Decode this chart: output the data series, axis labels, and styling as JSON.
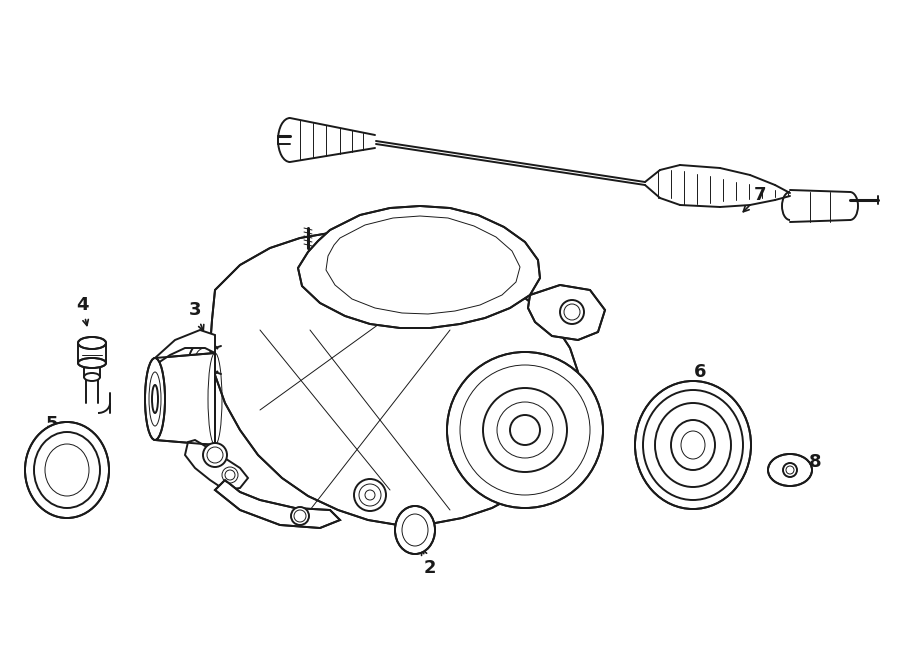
{
  "bg_color": "#ffffff",
  "line_color": "#1a1a1a",
  "fig_width": 9.0,
  "fig_height": 6.61,
  "dpi": 100,
  "lw_main": 1.4,
  "lw_thin": 0.7,
  "lw_thick": 2.2
}
